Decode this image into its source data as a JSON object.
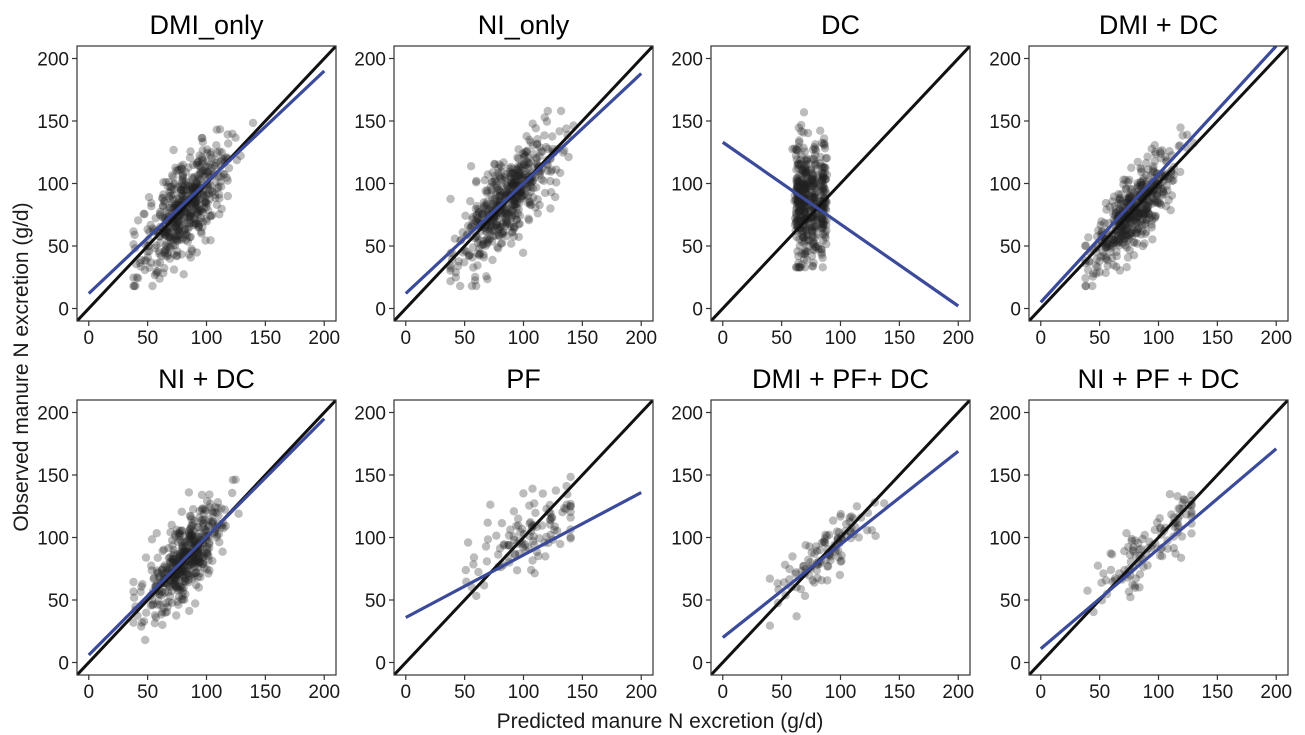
{
  "figure": {
    "xlabel": "Predicted manure N excretion (g/d)",
    "ylabel": "Observed manure N excretion (g/d)"
  },
  "colors": {
    "point": "#222222",
    "identity_line": "#111111",
    "fit_line": "#3b4a9a",
    "frame": "#333333"
  },
  "chart_data": [
    {
      "type": "scatter",
      "title": "DMI_only",
      "xlim": [
        -10,
        210
      ],
      "ylim": [
        -10,
        210
      ],
      "xticks": [
        0,
        50,
        100,
        150,
        200
      ],
      "yticks": [
        0,
        50,
        100,
        150,
        200
      ],
      "identity_line": [
        [
          -10,
          -10
        ],
        [
          210,
          210
        ]
      ],
      "fit_line": [
        [
          0,
          12
        ],
        [
          200,
          190
        ]
      ],
      "point_cloud": {
        "n": 520,
        "x_center": 82,
        "x_sd": 18,
        "y_slope": 0.95,
        "y_sd": 18,
        "x_range": [
          38,
          150
        ]
      }
    },
    {
      "type": "scatter",
      "title": "NI_only",
      "xlim": [
        -10,
        210
      ],
      "ylim": [
        -10,
        210
      ],
      "xticks": [
        0,
        50,
        100,
        150,
        200
      ],
      "yticks": [
        0,
        50,
        100,
        150,
        200
      ],
      "identity_line": [
        [
          -10,
          -10
        ],
        [
          210,
          210
        ]
      ],
      "fit_line": [
        [
          0,
          12
        ],
        [
          200,
          188
        ]
      ],
      "point_cloud": {
        "n": 520,
        "x_center": 85,
        "x_sd": 20,
        "y_slope": 0.9,
        "y_sd": 17,
        "x_range": [
          38,
          185
        ]
      }
    },
    {
      "type": "scatter",
      "title": "DC",
      "xlim": [
        -10,
        210
      ],
      "ylim": [
        -10,
        210
      ],
      "xticks": [
        0,
        50,
        100,
        150,
        200
      ],
      "yticks": [
        0,
        50,
        100,
        150,
        200
      ],
      "identity_line": [
        [
          -10,
          -10
        ],
        [
          210,
          210
        ]
      ],
      "fit_line": [
        [
          0,
          133
        ],
        [
          200,
          2
        ]
      ],
      "point_cloud": {
        "n": 460,
        "x_groups": [
          64,
          70,
          77,
          85
        ],
        "x_sd": 1.8,
        "y_center": 85,
        "y_sd": 25,
        "y_range": [
          33,
          157
        ]
      }
    },
    {
      "type": "scatter",
      "title": "DMI + DC",
      "xlim": [
        -10,
        210
      ],
      "ylim": [
        -10,
        210
      ],
      "xticks": [
        0,
        50,
        100,
        150,
        200
      ],
      "yticks": [
        0,
        50,
        100,
        150,
        200
      ],
      "identity_line": [
        [
          -10,
          -10
        ],
        [
          210,
          210
        ]
      ],
      "fit_line": [
        [
          0,
          5
        ],
        [
          200,
          210
        ]
      ],
      "point_cloud": {
        "n": 480,
        "x_center": 80,
        "x_sd": 18,
        "y_slope": 1.0,
        "y_sd": 14,
        "x_range": [
          38,
          160
        ]
      }
    },
    {
      "type": "scatter",
      "title": "NI + DC",
      "xlim": [
        -10,
        210
      ],
      "ylim": [
        -10,
        210
      ],
      "xticks": [
        0,
        50,
        100,
        150,
        200
      ],
      "yticks": [
        0,
        50,
        100,
        150,
        200
      ],
      "identity_line": [
        [
          -10,
          -10
        ],
        [
          210,
          210
        ]
      ],
      "fit_line": [
        [
          0,
          6
        ],
        [
          200,
          195
        ]
      ],
      "point_cloud": {
        "n": 460,
        "x_center": 82,
        "x_sd": 17,
        "y_slope": 1.0,
        "y_sd": 15,
        "x_range": [
          38,
          185
        ]
      }
    },
    {
      "type": "scatter",
      "title": "PF",
      "xlim": [
        -10,
        210
      ],
      "ylim": [
        -10,
        210
      ],
      "xticks": [
        0,
        50,
        100,
        150,
        200
      ],
      "yticks": [
        0,
        50,
        100,
        150,
        200
      ],
      "identity_line": [
        [
          -10,
          -10
        ],
        [
          210,
          210
        ]
      ],
      "fit_line": [
        [
          0,
          36
        ],
        [
          200,
          136
        ]
      ],
      "point_cloud": {
        "n": 110,
        "x_center": 100,
        "x_sd": 25,
        "y_slope": 0.5,
        "y_sd": 14,
        "x_range": [
          10,
          140
        ]
      }
    },
    {
      "type": "scatter",
      "title": "DMI + PF+ DC",
      "xlim": [
        -10,
        210
      ],
      "ylim": [
        -10,
        210
      ],
      "xticks": [
        0,
        50,
        100,
        150,
        200
      ],
      "yticks": [
        0,
        50,
        100,
        150,
        200
      ],
      "identity_line": [
        [
          -10,
          -10
        ],
        [
          210,
          210
        ]
      ],
      "fit_line": [
        [
          0,
          20
        ],
        [
          200,
          169
        ]
      ],
      "point_cloud": {
        "n": 110,
        "x_center": 85,
        "x_sd": 22,
        "y_slope": 0.75,
        "y_sd": 12,
        "x_range": [
          40,
          172
        ]
      }
    },
    {
      "type": "scatter",
      "title": "NI + PF + DC",
      "xlim": [
        -10,
        210
      ],
      "ylim": [
        -10,
        210
      ],
      "xticks": [
        0,
        50,
        100,
        150,
        200
      ],
      "yticks": [
        0,
        50,
        100,
        150,
        200
      ],
      "identity_line": [
        [
          -10,
          -10
        ],
        [
          210,
          210
        ]
      ],
      "fit_line": [
        [
          0,
          11
        ],
        [
          200,
          171
        ]
      ],
      "point_cloud": {
        "n": 110,
        "x_center": 90,
        "x_sd": 25,
        "y_slope": 0.8,
        "y_sd": 11,
        "x_range": [
          38,
          128
        ]
      }
    }
  ]
}
